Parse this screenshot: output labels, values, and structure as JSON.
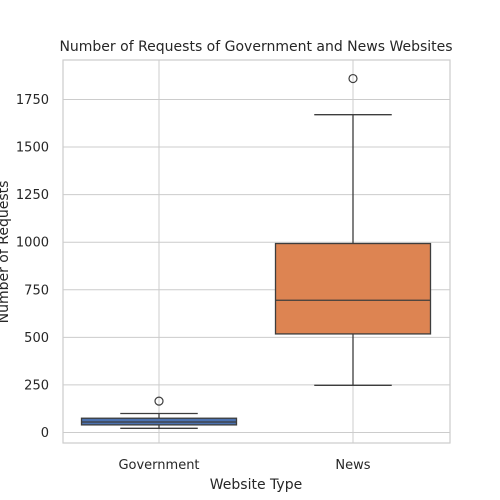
{
  "chart_data": {
    "type": "box",
    "title": "Number of Requests of Government and News Websites",
    "xlabel": "Website Type",
    "ylabel": "Number of Requests",
    "ylim": [
      -60,
      1950
    ],
    "yticks": [
      0,
      250,
      500,
      750,
      1000,
      1250,
      1500,
      1750
    ],
    "grid": true,
    "categories": [
      "Government",
      "News"
    ],
    "boxes": [
      {
        "name": "Government",
        "color": "#4c72b0",
        "whisker_low": 22,
        "q1": 40,
        "median": 55,
        "q3": 75,
        "whisker_high": 100,
        "outliers": [
          165
        ]
      },
      {
        "name": "News",
        "color": "#dd8452",
        "whisker_low": 248,
        "q1": 518,
        "median": 695,
        "q3": 993,
        "whisker_high": 1670,
        "outliers": [
          1860
        ]
      }
    ]
  }
}
